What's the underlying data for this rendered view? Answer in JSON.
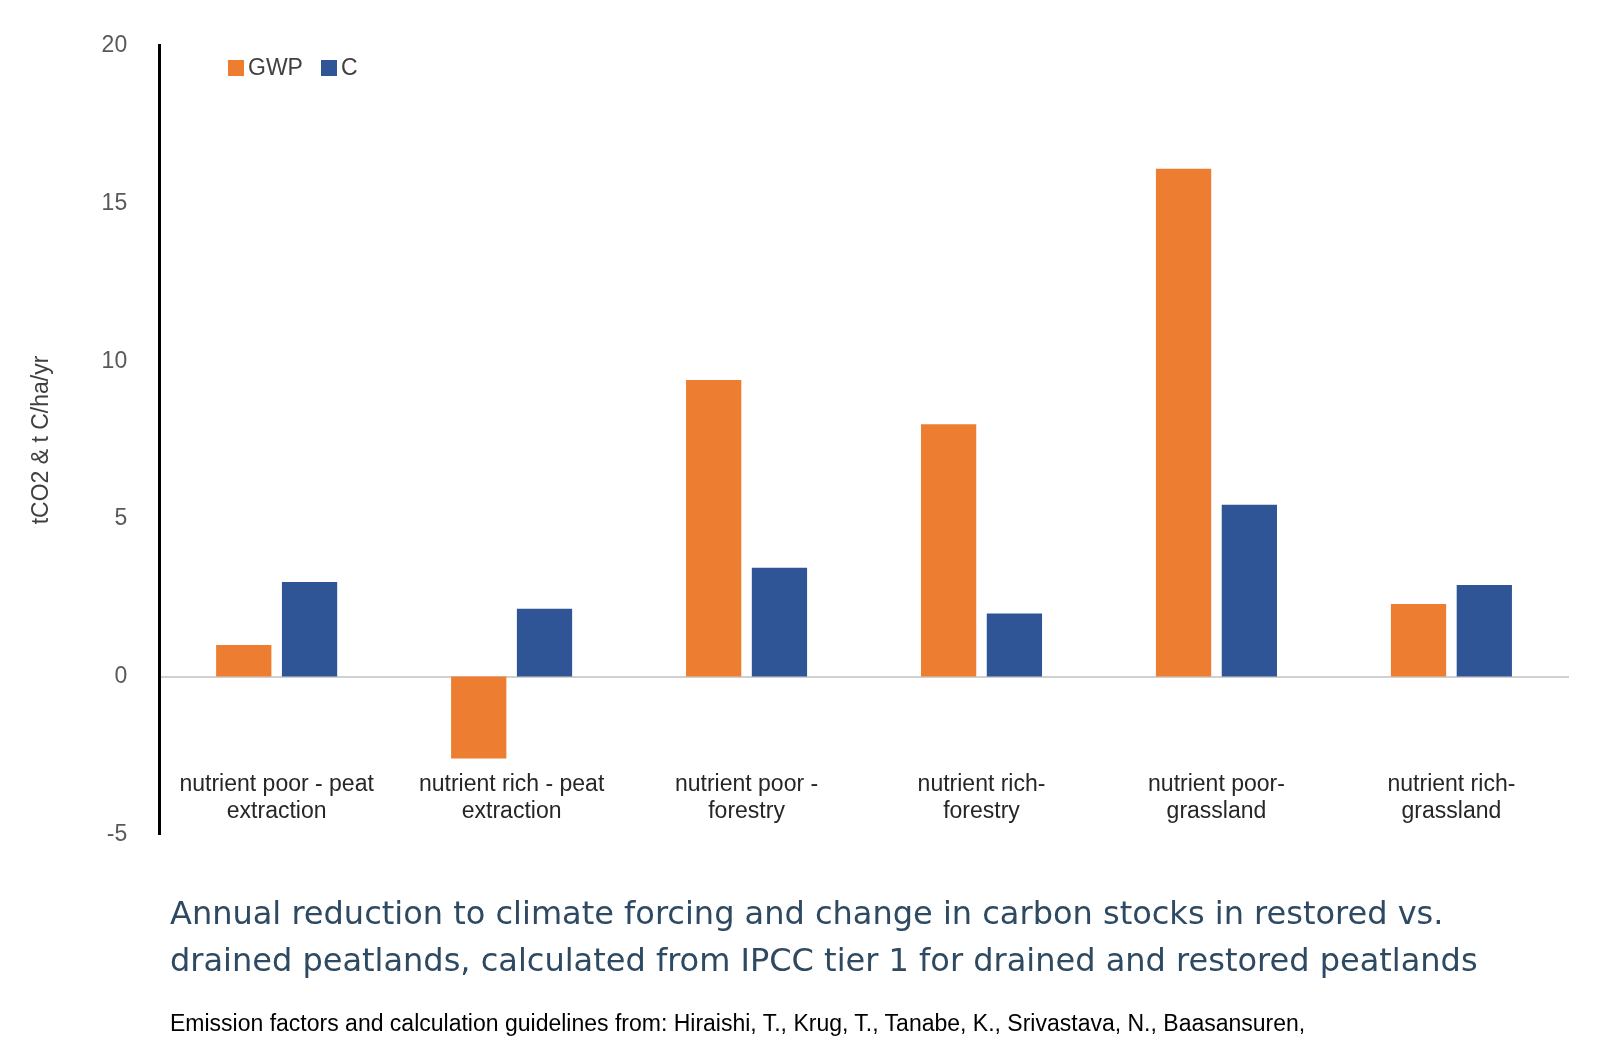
{
  "chart_data": {
    "type": "bar",
    "title": "Annual reduction to climate forcing and change in carbon stocks in restored vs. drained peatlands, calculated from IPCC tier 1 for drained and restored peatlands",
    "ylabel": "tCO2 & t C/ha/yr",
    "annotations": [
      "Emission factors and calculation guidelines from: Hiraishi, T., Krug, T., Tanabe, K., Srivastava, N., Baasansuren,"
    ],
    "categories": [
      "nutrient poor - peat extraction",
      "nutrient rich - peat extraction",
      "nutrient poor - forestry",
      "nutrient rich- forestry",
      "nutrient poor- grassland",
      "nutrient rich- grassland"
    ],
    "series": [
      {
        "name": "GWP",
        "color": "#ed7d31",
        "values": [
          1.0,
          -2.6,
          9.4,
          8.0,
          16.1,
          2.3
        ]
      },
      {
        "name": "C",
        "color": "#2f5597",
        "values": [
          3.0,
          2.15,
          3.45,
          2.0,
          5.45,
          2.9
        ]
      }
    ],
    "ylim": [
      -5,
      20
    ],
    "yticks": [
      -5,
      0,
      5,
      10,
      15,
      20
    ],
    "legend": "top left"
  }
}
